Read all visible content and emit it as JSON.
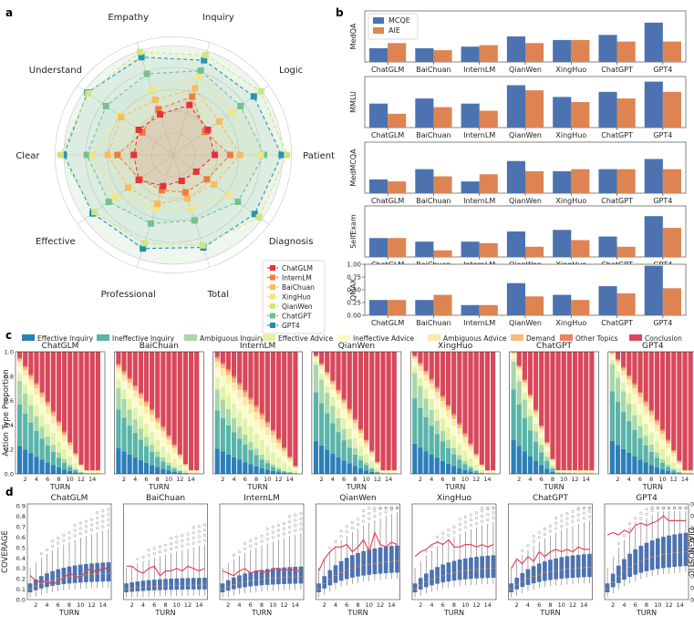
{
  "panels": {
    "a": "a",
    "b": "b",
    "c": "c",
    "d": "d"
  },
  "models": [
    "ChatGLM",
    "InternLM",
    "BaiChuan",
    "XingHuo",
    "QianWen",
    "ChatGPT",
    "GPT4"
  ],
  "model_colors": {
    "ChatGLM": "#e8303a",
    "InternLM": "#f47a3c",
    "BaiChuan": "#f9bb5b",
    "XingHuo": "#f1e583",
    "QianWen": "#cde67e",
    "ChatGPT": "#6cc08e",
    "GPT4": "#1a8fb5"
  },
  "bar_colors": {
    "MCQE": "#4c72b0",
    "AIE": "#dd8452"
  },
  "panel_c_colors": [
    "#2c7fb8",
    "#5ab4a8",
    "#a7d8a9",
    "#e2f3a8",
    "#fbfbc8",
    "#fde8a6",
    "#f9b97b",
    "#ef8060",
    "#d8485a"
  ],
  "chart_data": [
    {
      "type": "radar",
      "panel": "a",
      "axes": [
        "Inquiry",
        "Logic",
        "Patient",
        "Diagnosis",
        "Total",
        "Professional",
        "Effective",
        "Clear",
        "Understand",
        "Empathy"
      ],
      "rmax": 1.0,
      "series": [
        {
          "name": "ChatGLM",
          "values": [
            0.48,
            0.39,
            0.38,
            0.26,
            0.25,
            0.3,
            0.39,
            0.36,
            0.39,
            0.39
          ]
        },
        {
          "name": "InternLM",
          "values": [
            0.56,
            0.36,
            0.52,
            0.38,
            0.36,
            0.34,
            0.38,
            0.51,
            0.35,
            0.44
          ]
        },
        {
          "name": "BaiChuan",
          "values": [
            0.64,
            0.52,
            0.61,
            0.46,
            0.42,
            0.47,
            0.51,
            0.6,
            0.59,
            0.53
          ]
        },
        {
          "name": "XingHuo",
          "values": [
            0.75,
            0.67,
            0.8,
            0.63,
            0.52,
            0.52,
            0.66,
            0.74,
            0.61,
            0.63
          ]
        },
        {
          "name": "QianWen",
          "values": [
            0.96,
            0.99,
            1.04,
            0.97,
            0.87,
            0.85,
            0.89,
            1.03,
            0.96,
            0.99
          ]
        },
        {
          "name": "ChatGPT",
          "values": [
            0.81,
            0.76,
            0.83,
            0.73,
            0.63,
            0.66,
            0.73,
            0.79,
            0.76,
            0.78
          ]
        },
        {
          "name": "GPT4",
          "values": [
            0.91,
            0.91,
            0.99,
            0.92,
            0.89,
            0.9,
            0.91,
            1.0,
            0.97,
            0.94
          ]
        }
      ],
      "legend_position": "lower-right"
    },
    {
      "type": "bar",
      "panel": "b",
      "categories": [
        "ChatGLM",
        "BaiChuan",
        "InternLM",
        "QianWen",
        "XingHuo",
        "ChatGPT",
        "GPT4"
      ],
      "legend": [
        "MCQE",
        "AIE"
      ],
      "subplots": [
        {
          "ylabel": "MedQA",
          "MCQE": [
            0.27,
            0.27,
            0.3,
            0.5,
            0.43,
            0.53,
            0.77
          ],
          "AIE": [
            0.37,
            0.23,
            0.33,
            0.37,
            0.43,
            0.4,
            0.4
          ]
        },
        {
          "ylabel": "MMLU",
          "MCQE": [
            0.47,
            0.57,
            0.47,
            0.83,
            0.6,
            0.7,
            0.9
          ],
          "AIE": [
            0.27,
            0.4,
            0.33,
            0.73,
            0.5,
            0.57,
            0.7
          ]
        },
        {
          "ylabel": "MedMCQA",
          "MCQE": [
            0.27,
            0.47,
            0.23,
            0.63,
            0.43,
            0.47,
            0.67
          ],
          "AIE": [
            0.23,
            0.33,
            0.37,
            0.43,
            0.47,
            0.47,
            0.47
          ]
        },
        {
          "ylabel": "SelfExam",
          "MCQE": [
            0.37,
            0.3,
            0.3,
            0.5,
            0.53,
            0.4,
            0.8
          ],
          "AIE": [
            0.37,
            0.13,
            0.27,
            0.2,
            0.33,
            0.2,
            0.57
          ]
        },
        {
          "ylabel": "QMAX",
          "MCQE": [
            0.3,
            0.3,
            0.2,
            0.63,
            0.4,
            0.57,
            0.97
          ],
          "AIE": [
            0.3,
            0.4,
            0.2,
            0.37,
            0.3,
            0.43,
            0.53
          ]
        }
      ],
      "ylim": [
        0,
        1.0
      ],
      "yticks_last": [
        "0.00",
        "0.25",
        "0.50",
        "0.75",
        "1.00"
      ]
    },
    {
      "type": "stacked-bar",
      "panel": "c",
      "categories_legend": [
        "Effective Inquiry",
        "Ineffective Inquiry",
        "Ambiguous Inquiry",
        "Effective Advice",
        "Ineffective Advice",
        "Ambiguous Advice",
        "Demand",
        "Other Topics",
        "Conclusion"
      ],
      "models": [
        "ChatGLM",
        "BaiChuan",
        "InternLM",
        "QianWen",
        "XingHuo",
        "ChatGPT",
        "GPT4"
      ],
      "turns": 15,
      "ylabel": "Action Type Proportion",
      "xlabel": "TURN",
      "yticks": [
        "0.0",
        "0.2",
        "0.4",
        "0.6",
        "0.8",
        "1.0"
      ],
      "xticks": [
        "2",
        "4",
        "6",
        "8",
        "10",
        "12",
        "14"
      ],
      "params": [
        {
          "start": 0.05,
          "slope": 0.065,
          "inq0": 0.8
        },
        {
          "start": 0.1,
          "slope": 0.055,
          "inq0": 0.78
        },
        {
          "start": 0.04,
          "slope": 0.05,
          "inq0": 0.72
        },
        {
          "start": 0.03,
          "slope": 0.065,
          "inq0": 0.92
        },
        {
          "start": 0.03,
          "slope": 0.06,
          "inq0": 0.85
        },
        {
          "start": 0.0,
          "slope": 0.11,
          "inq0": 0.92
        },
        {
          "start": 0.0,
          "slope": 0.06,
          "inq0": 0.9
        }
      ]
    },
    {
      "type": "box+line",
      "panel": "d",
      "models": [
        "ChatGLM",
        "BaiChuan",
        "InternLM",
        "QianWen",
        "XingHuo",
        "ChatGPT",
        "GPT4"
      ],
      "ylabel_left": "COVERAGE",
      "ylabel_right": "DIAGNOSTIC",
      "xlabel": "TURN",
      "yticks_left": [
        "0.0",
        "0.1",
        "0.2",
        "0.3",
        "0.4",
        "0.5",
        "0.6",
        "0.7",
        "0.8",
        "0.9"
      ],
      "yticks_right": [
        "0.20",
        "0.25",
        "0.30",
        "0.35",
        "0.40",
        "0.45",
        "0.50",
        "0.55",
        "0.60"
      ],
      "xticks": [
        "2",
        "4",
        "6",
        "8",
        "10",
        "12",
        "14"
      ],
      "coverage_median_end": [
        0.25,
        0.14,
        0.22,
        0.37,
        0.3,
        0.31,
        0.46
      ],
      "diagnostic": [
        [
          0.3,
          0.28,
          0.27,
          0.28,
          0.26,
          0.28,
          0.29,
          0.31,
          0.3,
          0.29,
          0.32,
          0.33,
          0.31,
          0.34,
          0.32
        ],
        [
          0.34,
          0.34,
          0.32,
          0.31,
          0.33,
          0.34,
          0.3,
          0.32,
          0.32,
          0.33,
          0.32,
          0.34,
          0.33,
          0.32,
          0.33
        ],
        [
          0.32,
          0.31,
          0.3,
          0.32,
          0.33,
          0.31,
          0.32,
          0.32,
          0.31,
          0.33,
          0.33,
          0.32,
          0.33,
          0.32,
          0.32
        ],
        [
          0.32,
          0.37,
          0.4,
          0.42,
          0.42,
          0.43,
          0.4,
          0.42,
          0.45,
          0.4,
          0.48,
          0.43,
          0.42,
          0.44,
          0.43
        ],
        [
          0.38,
          0.4,
          0.41,
          0.43,
          0.44,
          0.43,
          0.45,
          0.42,
          0.42,
          0.43,
          0.43,
          0.42,
          0.43,
          0.42,
          0.43
        ],
        [
          0.33,
          0.37,
          0.35,
          0.38,
          0.36,
          0.4,
          0.38,
          0.4,
          0.41,
          0.4,
          0.41,
          0.4,
          0.42,
          0.41,
          0.41
        ],
        [
          0.47,
          0.48,
          0.47,
          0.49,
          0.48,
          0.51,
          0.52,
          0.51,
          0.52,
          0.53,
          0.55,
          0.53,
          0.53,
          0.53,
          0.53
        ]
      ]
    }
  ]
}
